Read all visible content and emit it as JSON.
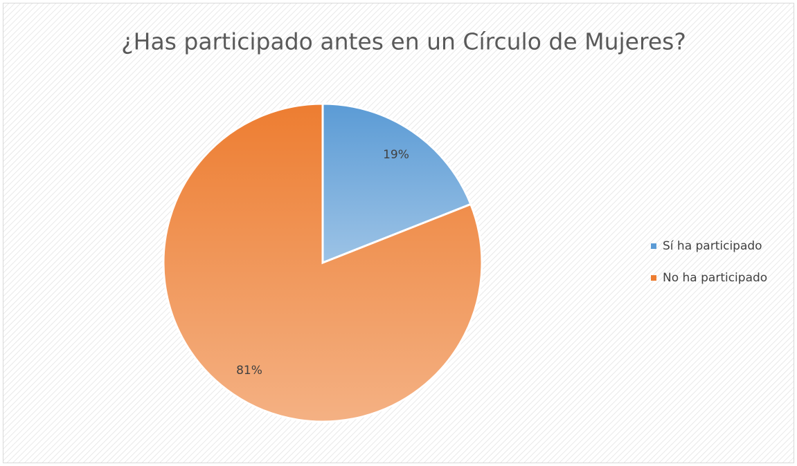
{
  "chart_data": {
    "type": "pie",
    "title": "¿Has participado antes en un Círculo de Mujeres?",
    "categories": [
      "Sí ha participado",
      "No ha participado"
    ],
    "values": [
      19,
      81
    ],
    "value_labels": [
      "19%",
      "81%"
    ],
    "colors": [
      "#5b9bd5",
      "#ed7d31"
    ],
    "legend": "right"
  }
}
